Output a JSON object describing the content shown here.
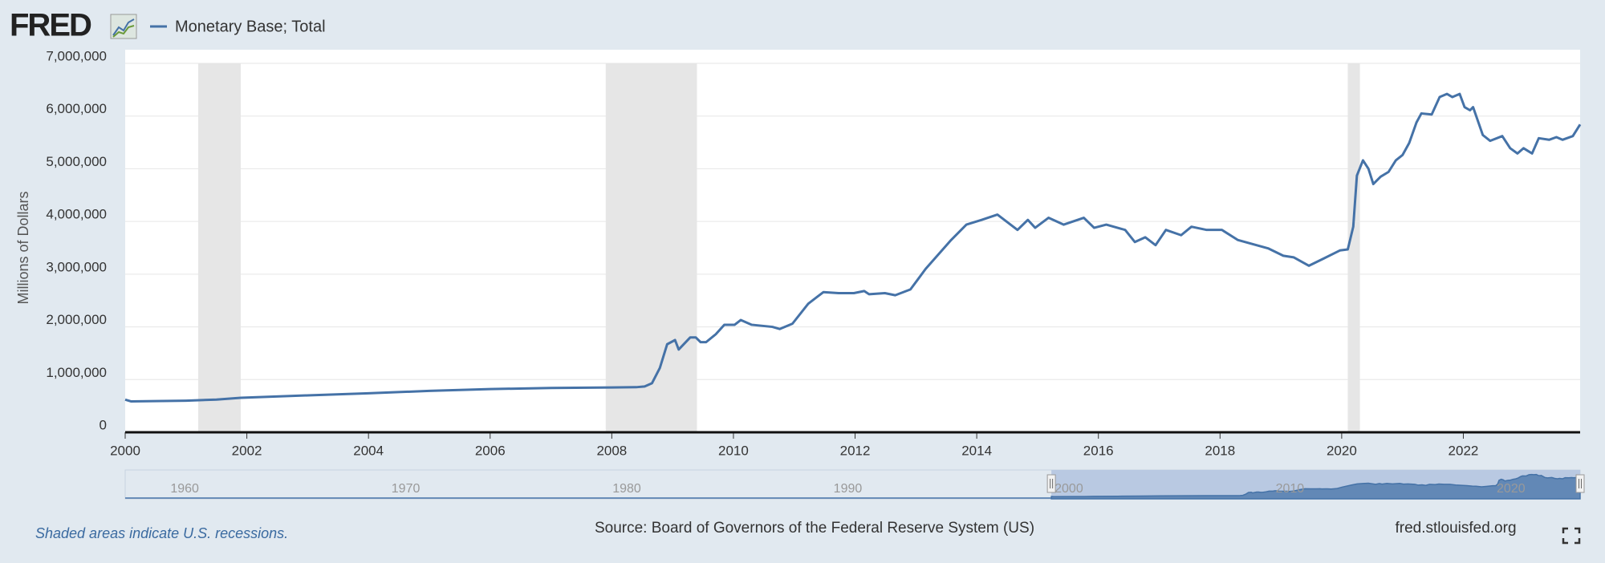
{
  "chart_data": {
    "type": "line",
    "logo": "FRED",
    "ylabel": "Millions of Dollars",
    "note": "Shaded areas indicate U.S. recessions.",
    "source": "Source: Board of Governors of the Federal Reserve System (US)",
    "site": "fred.stlouisfed.org",
    "x": [
      2000.0,
      2000.1,
      2001.0,
      2001.5,
      2001.9,
      2003.0,
      2004.0,
      2005.0,
      2006.0,
      2007.0,
      2008.0,
      2008.4,
      2008.54,
      2008.66,
      2008.79,
      2008.91,
      2009.04,
      2009.1,
      2009.29,
      2009.38,
      2009.46,
      2009.55,
      2009.71,
      2009.85,
      2010.02,
      2010.12,
      2010.3,
      2010.64,
      2010.76,
      2010.97,
      2011.23,
      2011.48,
      2011.73,
      2011.98,
      2012.15,
      2012.23,
      2012.49,
      2012.66,
      2012.91,
      2013.16,
      2013.58,
      2013.83,
      2014.08,
      2014.34,
      2014.67,
      2014.84,
      2014.96,
      2015.18,
      2015.43,
      2015.76,
      2015.93,
      2016.13,
      2016.44,
      2016.6,
      2016.77,
      2016.94,
      2017.11,
      2017.36,
      2017.53,
      2017.78,
      2018.03,
      2018.29,
      2018.79,
      2019.04,
      2019.21,
      2019.46,
      2019.71,
      2019.97,
      2020.1,
      2020.19,
      2020.25,
      2020.35,
      2020.44,
      2020.52,
      2020.64,
      2020.77,
      2020.89,
      2021.0,
      2021.11,
      2021.23,
      2021.31,
      2021.48,
      2021.61,
      2021.73,
      2021.82,
      2021.94,
      2022.02,
      2022.11,
      2022.16,
      2022.32,
      2022.44,
      2022.64,
      2022.77,
      2022.89,
      2022.99,
      2023.13,
      2023.24,
      2023.41,
      2023.53,
      2023.63,
      2023.8,
      2023.92
    ],
    "series": [
      {
        "name": "Monetary Base; Total",
        "color": "#4572a7",
        "values": [
          620000,
          585000,
          600000,
          620000,
          655000,
          700000,
          740000,
          785000,
          820000,
          840000,
          850000,
          855000,
          870000,
          930000,
          1220000,
          1670000,
          1750000,
          1570000,
          1800000,
          1800000,
          1710000,
          1710000,
          1860000,
          2040000,
          2040000,
          2130000,
          2040000,
          2000000,
          1960000,
          2060000,
          2440000,
          2660000,
          2640000,
          2640000,
          2680000,
          2620000,
          2640000,
          2600000,
          2710000,
          3100000,
          3650000,
          3940000,
          4030000,
          4130000,
          3840000,
          4030000,
          3880000,
          4070000,
          3940000,
          4070000,
          3880000,
          3940000,
          3840000,
          3610000,
          3700000,
          3550000,
          3840000,
          3740000,
          3900000,
          3840000,
          3840000,
          3650000,
          3490000,
          3350000,
          3320000,
          3160000,
          3300000,
          3450000,
          3470000,
          3900000,
          4870000,
          5160000,
          5000000,
          4710000,
          4850000,
          4940000,
          5160000,
          5260000,
          5490000,
          5880000,
          6050000,
          6030000,
          6360000,
          6420000,
          6360000,
          6420000,
          6170000,
          6110000,
          6170000,
          5640000,
          5530000,
          5620000,
          5390000,
          5290000,
          5390000,
          5290000,
          5580000,
          5550000,
          5600000,
          5550000,
          5620000,
          5840000
        ]
      }
    ],
    "xlim": [
      2000,
      2023.92
    ],
    "ylim": [
      0,
      7000000
    ],
    "xticks": [
      2000,
      2002,
      2004,
      2006,
      2008,
      2010,
      2012,
      2014,
      2016,
      2018,
      2020,
      2022
    ],
    "yticks": [
      0,
      {
        "value": 1000000,
        "label": "1,000,000"
      },
      {
        "value": 2000000,
        "label": "2,000,000"
      },
      {
        "value": 3000000,
        "label": "3,000,000"
      },
      {
        "value": 4000000,
        "label": "4,000,000"
      },
      {
        "value": 5000000,
        "label": "5,000,000"
      },
      {
        "value": 6000000,
        "label": "6,000,000"
      },
      {
        "value": 7000000,
        "label": "7,000,000"
      }
    ],
    "grid": true,
    "recessions": [
      [
        2001.2,
        2001.9
      ],
      [
        2007.9,
        2009.4
      ],
      [
        2020.1,
        2020.3
      ]
    ],
    "navigator": {
      "xlim": [
        1958.1,
        2023.92
      ],
      "xticks": [
        1960,
        1970,
        1980,
        1990,
        2000,
        2010,
        2020
      ]
    }
  }
}
